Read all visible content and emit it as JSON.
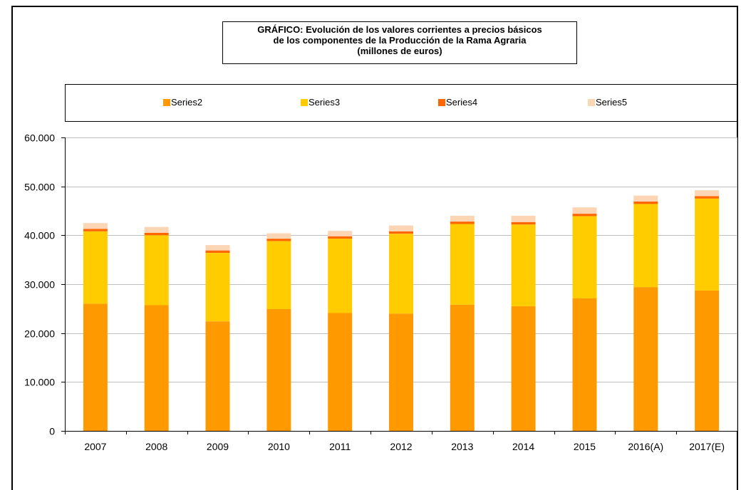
{
  "title_lines": [
    "GRÁFICO: Evolución de los valores corrientes a precios básicos",
    "de los componentes de la Producción de la Rama Agraria",
    "(millones de euros)"
  ],
  "colors": {
    "Series2": "#ff9900",
    "Series3": "#ffcc00",
    "Series4": "#ff6600",
    "Series5": "#fcd5b4"
  },
  "chart_data": {
    "type": "bar",
    "stacked": true,
    "title": "GRÁFICO: Evolución de los valores corrientes a precios básicos de los componentes de la Producción de la Rama Agraria (millones de euros)",
    "xlabel": "",
    "ylabel": "",
    "ylim": [
      0,
      60000
    ],
    "yticks": [
      "0",
      "10.000",
      "20.000",
      "30.000",
      "40.000",
      "50.000",
      "60.000"
    ],
    "grid": true,
    "legend_position": "top",
    "categories": [
      "2007",
      "2008",
      "2009",
      "2010",
      "2011",
      "2012",
      "2013",
      "2014",
      "2015",
      "2016(A)",
      "2017(E)"
    ],
    "series": [
      {
        "name": "Series2",
        "values": [
          26000,
          25700,
          22400,
          24900,
          24100,
          24000,
          25800,
          25500,
          27100,
          29400,
          28700
        ]
      },
      {
        "name": "Series3",
        "values": [
          14800,
          14300,
          14000,
          13900,
          15200,
          16300,
          16500,
          16700,
          16800,
          17000,
          18800
        ]
      },
      {
        "name": "Series4",
        "values": [
          500,
          500,
          500,
          500,
          500,
          500,
          500,
          500,
          500,
          500,
          500
        ]
      },
      {
        "name": "Series5",
        "values": [
          1200,
          1200,
          1100,
          1100,
          1100,
          1200,
          1200,
          1300,
          1300,
          1200,
          1200
        ]
      }
    ]
  }
}
